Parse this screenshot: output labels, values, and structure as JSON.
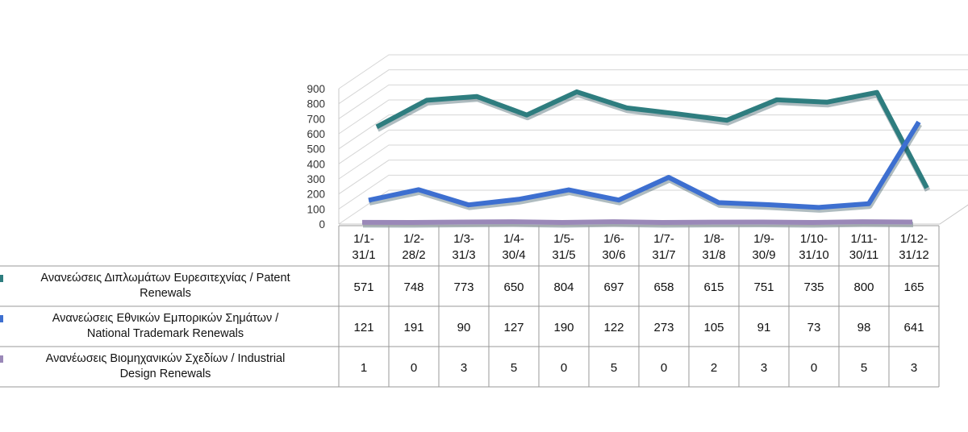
{
  "chart_data": {
    "type": "line",
    "ylim": [
      0,
      900
    ],
    "y_ticks": [
      0,
      100,
      200,
      300,
      400,
      500,
      600,
      700,
      800,
      900
    ],
    "grid": true,
    "legend": "table-left",
    "categories": [
      [
        "1/1-",
        "31/1"
      ],
      [
        "1/2-",
        "28/2"
      ],
      [
        "1/3-",
        "31/3"
      ],
      [
        "1/4-",
        "30/4"
      ],
      [
        "1/5-",
        "31/5"
      ],
      [
        "1/6-",
        "30/6"
      ],
      [
        "1/7-",
        "31/7"
      ],
      [
        "1/8-",
        "31/8"
      ],
      [
        "1/9-",
        "30/9"
      ],
      [
        "1/10-",
        "31/10"
      ],
      [
        "1/11-",
        "30/11"
      ],
      [
        "1/12-",
        "31/12"
      ]
    ],
    "series": [
      {
        "name": [
          "Ανανεώσεις Διπλωμάτων Ευρεσιτεχνίας  / Patent",
          "Renewals"
        ],
        "values": [
          571,
          748,
          773,
          650,
          804,
          697,
          658,
          615,
          751,
          735,
          800,
          165
        ],
        "color": "#2e7d7f"
      },
      {
        "name": [
          "Ανανεώσεις Εθνικών Εμπορικών Σημάτων /",
          "National Trademark Renewals"
        ],
        "values": [
          121,
          191,
          90,
          127,
          190,
          122,
          273,
          105,
          91,
          73,
          98,
          641
        ],
        "color": "#3d6fd0"
      },
      {
        "name": [
          "Ανανέωσεις Βιομηχανικών Σχεδίων / Industrial",
          "Design Renewals"
        ],
        "values": [
          1,
          0,
          3,
          5,
          0,
          5,
          0,
          2,
          3,
          0,
          5,
          3
        ],
        "color": "#9a88b8"
      }
    ]
  }
}
